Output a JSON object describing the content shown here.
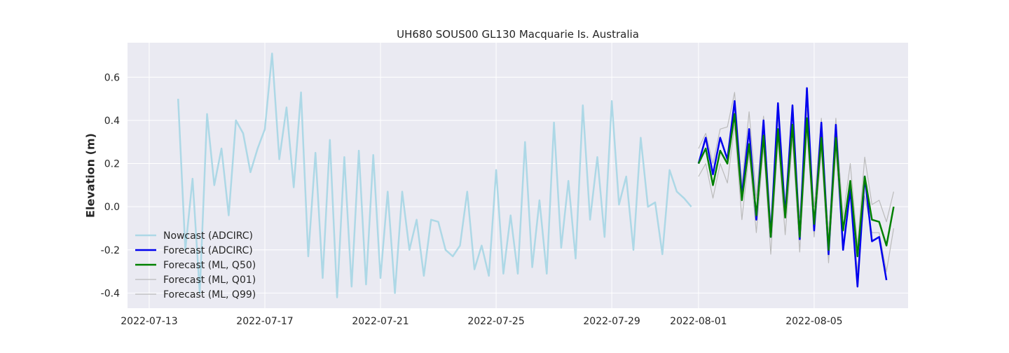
{
  "chart_data": {
    "type": "line",
    "title": "UH680 SOUS00 GL130 Macquarie Is. Australia",
    "xlabel": "",
    "ylabel": "Elevation (m)",
    "x_type": "date",
    "xlim": [
      "2022-07-12 06:00",
      "2022-08-08 06:00"
    ],
    "ylim": [
      -0.47,
      0.76
    ],
    "x_ticks": [
      "2022-07-13",
      "2022-07-17",
      "2022-07-21",
      "2022-07-25",
      "2022-07-29",
      "2022-08-01",
      "2022-08-05"
    ],
    "y_ticks": [
      "-0.4",
      "-0.2",
      "0.0",
      "0.2",
      "0.4",
      "0.6"
    ],
    "y_tick_values": [
      -0.4,
      -0.2,
      0.0,
      0.2,
      0.4,
      0.6
    ],
    "grid": true,
    "legend_position": "lower-left",
    "series": [
      {
        "name": "Nowcast (ADCIRC)",
        "color": "#add8e6",
        "x": [
          "2022-07-14 00:00",
          "2022-07-14 06:00",
          "2022-07-14 12:00",
          "2022-07-14 18:00",
          "2022-07-15 00:00",
          "2022-07-15 06:00",
          "2022-07-15 12:00",
          "2022-07-15 18:00",
          "2022-07-16 00:00",
          "2022-07-16 06:00",
          "2022-07-16 12:00",
          "2022-07-16 18:00",
          "2022-07-17 00:00",
          "2022-07-17 06:00",
          "2022-07-17 12:00",
          "2022-07-17 18:00",
          "2022-07-18 00:00",
          "2022-07-18 06:00",
          "2022-07-18 12:00",
          "2022-07-18 18:00",
          "2022-07-19 00:00",
          "2022-07-19 06:00",
          "2022-07-19 12:00",
          "2022-07-19 18:00",
          "2022-07-20 00:00",
          "2022-07-20 06:00",
          "2022-07-20 12:00",
          "2022-07-20 18:00",
          "2022-07-21 00:00",
          "2022-07-21 06:00",
          "2022-07-21 12:00",
          "2022-07-21 18:00",
          "2022-07-22 00:00",
          "2022-07-22 06:00",
          "2022-07-22 12:00",
          "2022-07-22 18:00",
          "2022-07-23 00:00",
          "2022-07-23 06:00",
          "2022-07-23 12:00",
          "2022-07-23 18:00",
          "2022-07-24 00:00",
          "2022-07-24 06:00",
          "2022-07-24 12:00",
          "2022-07-24 18:00",
          "2022-07-25 00:00",
          "2022-07-25 06:00",
          "2022-07-25 12:00",
          "2022-07-25 18:00",
          "2022-07-26 00:00",
          "2022-07-26 06:00",
          "2022-07-26 12:00",
          "2022-07-26 18:00",
          "2022-07-27 00:00",
          "2022-07-27 06:00",
          "2022-07-27 12:00",
          "2022-07-27 18:00",
          "2022-07-28 00:00",
          "2022-07-28 06:00",
          "2022-07-28 12:00",
          "2022-07-28 18:00",
          "2022-07-29 00:00",
          "2022-07-29 06:00",
          "2022-07-29 12:00",
          "2022-07-29 18:00",
          "2022-07-30 00:00",
          "2022-07-30 06:00",
          "2022-07-30 12:00",
          "2022-07-30 18:00",
          "2022-07-31 00:00",
          "2022-07-31 06:00",
          "2022-07-31 12:00",
          "2022-07-31 18:00"
        ],
        "y": [
          0.5,
          -0.2,
          0.13,
          -0.4,
          0.43,
          0.1,
          0.27,
          -0.04,
          0.4,
          0.34,
          0.16,
          0.27,
          0.36,
          0.71,
          0.22,
          0.46,
          0.09,
          0.53,
          -0.23,
          0.25,
          -0.33,
          0.31,
          -0.42,
          0.23,
          -0.37,
          0.26,
          -0.36,
          0.24,
          -0.33,
          0.07,
          -0.4,
          0.07,
          -0.2,
          -0.06,
          -0.32,
          -0.06,
          -0.07,
          -0.2,
          -0.23,
          -0.18,
          0.07,
          -0.29,
          -0.18,
          -0.32,
          0.17,
          -0.31,
          -0.04,
          -0.31,
          0.3,
          -0.28,
          0.03,
          -0.31,
          0.39,
          -0.19,
          0.12,
          -0.24,
          0.47,
          -0.06,
          0.23,
          -0.14,
          0.49,
          0.01,
          0.14,
          -0.2,
          0.32,
          0.0,
          0.02,
          -0.22,
          0.17,
          0.07,
          0.04,
          0.0
        ]
      },
      {
        "name": "Forecast (ADCIRC)",
        "color": "#0000ee",
        "x": [
          "2022-08-01 00:00",
          "2022-08-01 06:00",
          "2022-08-01 12:00",
          "2022-08-01 18:00",
          "2022-08-02 00:00",
          "2022-08-02 06:00",
          "2022-08-02 12:00",
          "2022-08-02 18:00",
          "2022-08-03 00:00",
          "2022-08-03 06:00",
          "2022-08-03 12:00",
          "2022-08-03 18:00",
          "2022-08-04 00:00",
          "2022-08-04 06:00",
          "2022-08-04 12:00",
          "2022-08-04 18:00",
          "2022-08-05 00:00",
          "2022-08-05 06:00",
          "2022-08-05 12:00",
          "2022-08-05 18:00",
          "2022-08-06 00:00",
          "2022-08-06 06:00",
          "2022-08-06 12:00",
          "2022-08-06 18:00",
          "2022-08-07 00:00",
          "2022-08-07 06:00",
          "2022-08-07 12:00",
          "2022-08-07 18:00"
        ],
        "y": [
          0.2,
          0.32,
          0.15,
          0.32,
          0.22,
          0.49,
          0.05,
          0.36,
          -0.06,
          0.4,
          -0.14,
          0.48,
          -0.04,
          0.47,
          -0.15,
          0.55,
          -0.11,
          0.39,
          -0.22,
          0.38,
          -0.2,
          0.08,
          -0.37,
          0.14,
          -0.16,
          -0.14,
          -0.34,
          null
        ]
      },
      {
        "name": "Forecast (ML, Q50)",
        "color": "#008000",
        "x": [
          "2022-08-01 00:00",
          "2022-08-01 06:00",
          "2022-08-01 12:00",
          "2022-08-01 18:00",
          "2022-08-02 00:00",
          "2022-08-02 06:00",
          "2022-08-02 12:00",
          "2022-08-02 18:00",
          "2022-08-03 00:00",
          "2022-08-03 06:00",
          "2022-08-03 12:00",
          "2022-08-03 18:00",
          "2022-08-04 00:00",
          "2022-08-04 06:00",
          "2022-08-04 12:00",
          "2022-08-04 18:00",
          "2022-08-05 00:00",
          "2022-08-05 06:00",
          "2022-08-05 12:00",
          "2022-08-05 18:00",
          "2022-08-06 00:00",
          "2022-08-06 06:00",
          "2022-08-06 12:00",
          "2022-08-06 18:00",
          "2022-08-07 00:00",
          "2022-08-07 06:00",
          "2022-08-07 12:00",
          "2022-08-07 18:00"
        ],
        "y": [
          0.2,
          0.27,
          0.1,
          0.26,
          0.2,
          0.43,
          0.03,
          0.29,
          -0.04,
          0.33,
          -0.14,
          0.36,
          -0.05,
          0.38,
          -0.14,
          0.41,
          -0.08,
          0.32,
          -0.2,
          0.32,
          -0.11,
          0.12,
          -0.23,
          0.14,
          -0.06,
          -0.07,
          -0.18,
          0.0
        ]
      },
      {
        "name": "Forecast (ML, Q01)",
        "color": "#bbbbbb",
        "x": [
          "2022-08-01 00:00",
          "2022-08-01 06:00",
          "2022-08-01 12:00",
          "2022-08-01 18:00",
          "2022-08-02 00:00",
          "2022-08-02 06:00",
          "2022-08-02 12:00",
          "2022-08-02 18:00",
          "2022-08-03 00:00",
          "2022-08-03 06:00",
          "2022-08-03 12:00",
          "2022-08-03 18:00",
          "2022-08-04 00:00",
          "2022-08-04 06:00",
          "2022-08-04 12:00",
          "2022-08-04 18:00",
          "2022-08-05 00:00",
          "2022-08-05 06:00",
          "2022-08-05 12:00",
          "2022-08-05 18:00",
          "2022-08-06 00:00",
          "2022-08-06 06:00",
          "2022-08-06 12:00",
          "2022-08-06 18:00",
          "2022-08-07 00:00",
          "2022-08-07 06:00",
          "2022-08-07 12:00",
          "2022-08-07 18:00"
        ],
        "y": [
          0.14,
          0.2,
          0.04,
          0.2,
          0.11,
          0.38,
          -0.06,
          0.25,
          -0.12,
          0.28,
          -0.22,
          0.31,
          -0.13,
          0.31,
          -0.21,
          0.36,
          -0.14,
          0.26,
          -0.26,
          0.26,
          -0.2,
          0.06,
          -0.3,
          0.05,
          -0.12,
          -0.12,
          -0.3,
          -0.1
        ]
      },
      {
        "name": "Forecast (ML, Q99)",
        "color": "#bbbbbb",
        "x": [
          "2022-08-01 00:00",
          "2022-08-01 06:00",
          "2022-08-01 12:00",
          "2022-08-01 18:00",
          "2022-08-02 00:00",
          "2022-08-02 06:00",
          "2022-08-02 12:00",
          "2022-08-02 18:00",
          "2022-08-03 00:00",
          "2022-08-03 06:00",
          "2022-08-03 12:00",
          "2022-08-03 18:00",
          "2022-08-04 00:00",
          "2022-08-04 06:00",
          "2022-08-04 12:00",
          "2022-08-04 18:00",
          "2022-08-05 00:00",
          "2022-08-05 06:00",
          "2022-08-05 12:00",
          "2022-08-05 18:00",
          "2022-08-06 00:00",
          "2022-08-06 06:00",
          "2022-08-06 12:00",
          "2022-08-06 18:00",
          "2022-08-07 00:00",
          "2022-08-07 06:00",
          "2022-08-07 12:00",
          "2022-08-07 18:00"
        ],
        "y": [
          0.27,
          0.34,
          0.2,
          0.36,
          0.37,
          0.53,
          0.1,
          0.44,
          0.04,
          0.42,
          -0.08,
          0.4,
          0.02,
          0.38,
          -0.05,
          0.45,
          0.0,
          0.41,
          -0.14,
          0.41,
          -0.05,
          0.2,
          -0.18,
          0.23,
          0.01,
          0.03,
          -0.07,
          0.07
        ]
      }
    ]
  }
}
